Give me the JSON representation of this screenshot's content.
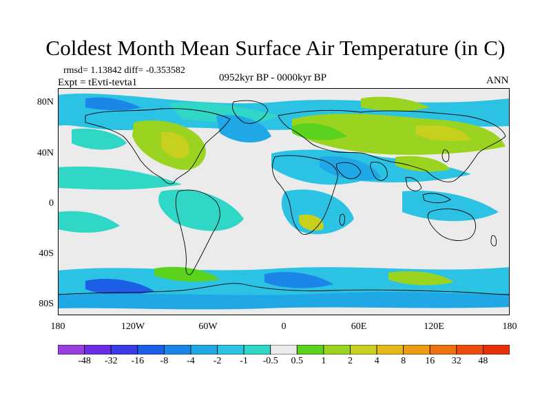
{
  "title": "Coldest Month Mean Surface Air Temperature (in C)",
  "stats": "rmsd= 1.13842  diff= -0.353582",
  "experiment": "Expt = tEvti-tevta1",
  "period": "0952kyr BP - 0000kyr BP",
  "season": "ANN",
  "map": {
    "lat_labels": [
      "80N",
      "40N",
      "0",
      "40S",
      "80S"
    ],
    "lon_labels": [
      "180",
      "120W",
      "60W",
      "0",
      "60E",
      "120E",
      "180"
    ],
    "colors": {
      "ocean_neutral": "#ebebeb",
      "coast": "#000000"
    }
  },
  "legend": {
    "labels": [
      "-48",
      "-32",
      "-16",
      "-8",
      "-4",
      "-2",
      "-1",
      "-0.5",
      "0.5",
      "1",
      "2",
      "4",
      "8",
      "16",
      "32",
      "48"
    ],
    "colors": [
      "#9a3fe0",
      "#6a2ee6",
      "#3a3ae8",
      "#1a5fe6",
      "#1c86e8",
      "#20a8e6",
      "#2cc2e4",
      "#30d6c6",
      "#ebebeb",
      "#5ad21e",
      "#9ad420",
      "#c8d01e",
      "#e6b818",
      "#ec9c14",
      "#ee7010",
      "#ee4c0c",
      "#e8300a"
    ]
  }
}
